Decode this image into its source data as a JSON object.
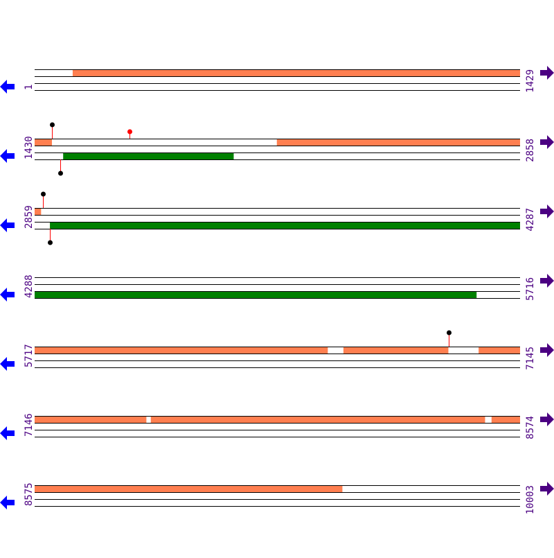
{
  "colors": {
    "forward_feature": "#ff7f50",
    "reverse_feature": "#008000",
    "strand_line": "#000000",
    "label": "#4b0082",
    "left_arrow": "#0000ff",
    "right_arrow": "#4b0082",
    "marker_stem": "#ff0000",
    "marker_black": "#000000",
    "marker_red": "#ff0000"
  },
  "icons": {
    "left": "arrow-left-icon",
    "right": "arrow-right-icon"
  },
  "rows": [
    {
      "start": "1",
      "end": "1429",
      "s": 1,
      "e": 1429,
      "forward": [
        [
          113,
          1429
        ]
      ],
      "reverse": [],
      "markers": []
    },
    {
      "start": "1430",
      "end": "2858",
      "s": 1430,
      "e": 2858,
      "forward": [
        [
          1430,
          1480
        ],
        [
          2143,
          2858
        ]
      ],
      "reverse": [
        [
          1514,
          2015
        ]
      ],
      "markers": [
        {
          "pos": 1480,
          "strand": "forward",
          "color": "black",
          "tall": true
        },
        {
          "pos": 1709,
          "strand": "forward",
          "color": "red",
          "tall": false
        },
        {
          "pos": 1505,
          "strand": "reverse",
          "color": "black",
          "tall": true
        }
      ]
    },
    {
      "start": "2859",
      "end": "4287",
      "s": 2859,
      "e": 4287,
      "forward": [
        [
          2859,
          2877
        ]
      ],
      "reverse": [
        [
          2904,
          4287
        ]
      ],
      "markers": [
        {
          "pos": 2884,
          "strand": "forward",
          "color": "black",
          "tall": true
        },
        {
          "pos": 2903,
          "strand": "reverse",
          "color": "black",
          "tall": true
        }
      ]
    },
    {
      "start": "4288",
      "end": "5716",
      "s": 4288,
      "e": 5716,
      "forward": [],
      "reverse": [
        [
          4288,
          5588
        ]
      ],
      "markers": []
    },
    {
      "start": "5717",
      "end": "7145",
      "s": 5717,
      "e": 7145,
      "forward": [
        [
          5717,
          6579
        ],
        [
          6626,
          6934
        ],
        [
          7024,
          7145
        ]
      ],
      "reverse": [],
      "markers": [
        {
          "pos": 6936,
          "strand": "forward",
          "color": "black",
          "tall": true
        }
      ]
    },
    {
      "start": "7146",
      "end": "8574",
      "s": 7146,
      "e": 8574,
      "forward": [
        [
          7146,
          7474
        ],
        [
          7488,
          8471
        ],
        [
          8491,
          8574
        ]
      ],
      "reverse": [],
      "markers": []
    },
    {
      "start": "8575",
      "end": "10003",
      "s": 8575,
      "e": 10003,
      "forward": [
        [
          8575,
          9480
        ]
      ],
      "reverse": [],
      "markers": []
    }
  ]
}
